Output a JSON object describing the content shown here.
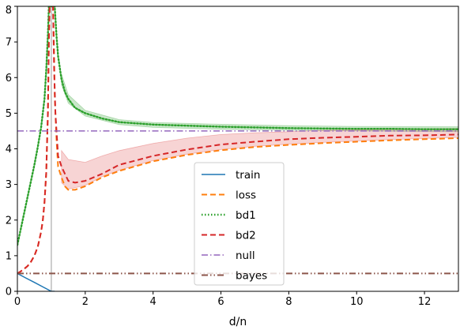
{
  "chart_data": {
    "type": "line",
    "xlabel": "d/n",
    "ylabel": "",
    "xlim": [
      0,
      13
    ],
    "ylim": [
      0,
      8
    ],
    "xticks": [
      "0",
      "2",
      "4",
      "6",
      "8",
      "10",
      "12"
    ],
    "yticks": [
      "0",
      "1",
      "2",
      "3",
      "4",
      "5",
      "6",
      "7",
      "8"
    ],
    "grid": false,
    "legend_position": "lower-center",
    "vertical_reference_x": 1,
    "series": [
      {
        "name": "train",
        "color": "#1f77b4",
        "style": "solid",
        "points": [
          [
            0,
            0.5
          ],
          [
            0.25,
            0.375
          ],
          [
            0.5,
            0.25
          ],
          [
            0.75,
            0.125
          ],
          [
            1.0,
            0.0
          ],
          [
            1.1,
            0.0
          ]
        ]
      },
      {
        "name": "loss",
        "color": "#ff7f0e",
        "style": "dashed",
        "points": [
          [
            0,
            0.5
          ],
          [
            0.1,
            0.56
          ],
          [
            0.2,
            0.63
          ],
          [
            0.3,
            0.71
          ],
          [
            0.4,
            0.83
          ],
          [
            0.5,
            1.0
          ],
          [
            0.6,
            1.25
          ],
          [
            0.7,
            1.67
          ],
          [
            0.75,
            2.0
          ],
          [
            0.8,
            2.5
          ],
          [
            0.85,
            3.33
          ],
          [
            0.9,
            5.0
          ],
          [
            0.93,
            7.1
          ],
          [
            0.95,
            8.0
          ],
          [
            1.05,
            8.0
          ],
          [
            1.08,
            6.75
          ],
          [
            1.1,
            5.5
          ],
          [
            1.15,
            4.3
          ],
          [
            1.2,
            3.5
          ],
          [
            1.3,
            3.2
          ],
          [
            1.4,
            2.95
          ],
          [
            1.5,
            2.85
          ],
          [
            1.7,
            2.85
          ],
          [
            2.0,
            2.95
          ],
          [
            2.5,
            3.2
          ],
          [
            3.0,
            3.38
          ],
          [
            4.0,
            3.65
          ],
          [
            5.0,
            3.83
          ],
          [
            6.0,
            3.96
          ],
          [
            7.0,
            4.05
          ],
          [
            8.0,
            4.11
          ],
          [
            9.0,
            4.16
          ],
          [
            10.0,
            4.2
          ],
          [
            11.0,
            4.24
          ],
          [
            12.0,
            4.27
          ],
          [
            13.0,
            4.3
          ]
        ]
      },
      {
        "name": "bd1",
        "color": "#2ca02c",
        "style": "dotted",
        "points": [
          [
            0,
            1.3
          ],
          [
            0.1,
            1.75
          ],
          [
            0.2,
            2.2
          ],
          [
            0.3,
            2.65
          ],
          [
            0.4,
            3.1
          ],
          [
            0.5,
            3.55
          ],
          [
            0.6,
            4.05
          ],
          [
            0.7,
            4.6
          ],
          [
            0.8,
            5.4
          ],
          [
            0.85,
            6.2
          ],
          [
            0.9,
            7.2
          ],
          [
            0.93,
            8.0
          ],
          [
            1.1,
            8.0
          ],
          [
            1.15,
            7.2
          ],
          [
            1.2,
            6.6
          ],
          [
            1.3,
            5.95
          ],
          [
            1.4,
            5.6
          ],
          [
            1.5,
            5.4
          ],
          [
            1.7,
            5.15
          ],
          [
            2.0,
            5.0
          ],
          [
            2.5,
            4.85
          ],
          [
            3.0,
            4.75
          ],
          [
            4.0,
            4.68
          ],
          [
            5.0,
            4.65
          ],
          [
            6.0,
            4.62
          ],
          [
            7.0,
            4.6
          ],
          [
            8.0,
            4.58
          ],
          [
            9.0,
            4.57
          ],
          [
            10.0,
            4.56
          ],
          [
            11.0,
            4.56
          ],
          [
            12.0,
            4.55
          ],
          [
            13.0,
            4.55
          ]
        ]
      },
      {
        "name": "bd2",
        "color": "#d62728",
        "style": "dashed",
        "points": [
          [
            0,
            0.5
          ],
          [
            0.1,
            0.56
          ],
          [
            0.2,
            0.63
          ],
          [
            0.3,
            0.71
          ],
          [
            0.4,
            0.83
          ],
          [
            0.5,
            1.0
          ],
          [
            0.6,
            1.25
          ],
          [
            0.7,
            1.67
          ],
          [
            0.75,
            2.0
          ],
          [
            0.8,
            2.5
          ],
          [
            0.85,
            3.33
          ],
          [
            0.9,
            5.0
          ],
          [
            0.93,
            7.1
          ],
          [
            0.95,
            8.0
          ],
          [
            1.05,
            8.0
          ],
          [
            1.08,
            6.3
          ],
          [
            1.12,
            5.0
          ],
          [
            1.2,
            3.8
          ],
          [
            1.3,
            3.5
          ],
          [
            1.5,
            3.1
          ],
          [
            1.7,
            3.05
          ],
          [
            2.0,
            3.1
          ],
          [
            2.5,
            3.3
          ],
          [
            3.0,
            3.55
          ],
          [
            4.0,
            3.8
          ],
          [
            5.0,
            3.98
          ],
          [
            6.0,
            4.12
          ],
          [
            7.0,
            4.2
          ],
          [
            8.0,
            4.27
          ],
          [
            9.0,
            4.31
          ],
          [
            10.0,
            4.34
          ],
          [
            11.0,
            4.37
          ],
          [
            12.0,
            4.38
          ],
          [
            13.0,
            4.4
          ]
        ]
      },
      {
        "name": "null",
        "color": "#9467bd",
        "style": "dashdot",
        "points": [
          [
            0,
            4.5
          ],
          [
            13,
            4.5
          ]
        ]
      },
      {
        "name": "bayes",
        "color": "#8c564b",
        "style": "dashdotdot",
        "points": [
          [
            0,
            0.5
          ],
          [
            13,
            0.5
          ]
        ]
      }
    ],
    "bands": [
      {
        "series": "bd1",
        "color": "#2ca02c",
        "opacity": 0.25,
        "x": [
          1.3,
          1.5,
          2.0,
          3.0,
          4.0,
          6.0,
          8.0,
          10.0,
          13.0
        ],
        "lower": [
          5.8,
          5.28,
          4.92,
          4.68,
          4.6,
          4.55,
          4.52,
          4.5,
          4.48
        ],
        "upper": [
          6.1,
          5.52,
          5.08,
          4.82,
          4.74,
          4.69,
          4.65,
          4.63,
          4.62
        ]
      },
      {
        "series": "bd2",
        "color": "#d62728",
        "opacity": 0.2,
        "x": [
          1.3,
          1.5,
          2.0,
          2.5,
          3.0,
          4.0,
          5.0,
          6.0,
          7.0,
          8.0,
          9.0,
          10.0,
          11.0,
          12.0,
          13.0
        ],
        "lower": [
          3.05,
          2.87,
          2.97,
          3.22,
          3.4,
          3.67,
          3.85,
          3.98,
          4.07,
          4.13,
          4.18,
          4.22,
          4.26,
          4.29,
          4.32
        ],
        "upper": [
          3.95,
          3.7,
          3.62,
          3.8,
          3.95,
          4.15,
          4.3,
          4.4,
          4.45,
          4.48,
          4.52,
          4.53,
          4.55,
          4.56,
          4.57
        ]
      }
    ],
    "legend": [
      "train",
      "loss",
      "bd1",
      "bd2",
      "null",
      "bayes"
    ]
  }
}
